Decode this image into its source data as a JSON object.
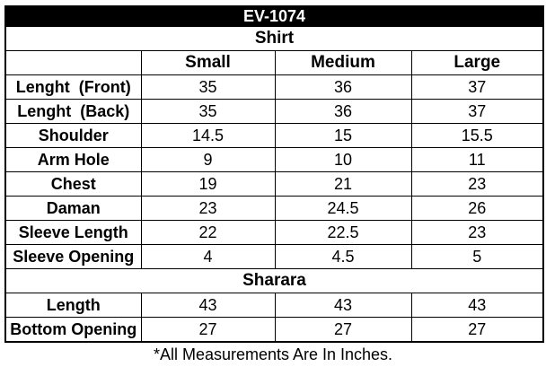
{
  "title": "EV-1074",
  "columns": [
    "Small",
    "Medium",
    "Large"
  ],
  "sections": [
    {
      "name": "Shirt",
      "rows": [
        {
          "label": "Lenght  (Front)",
          "values": [
            "35",
            "36",
            "37"
          ]
        },
        {
          "label": "Lenght  (Back)",
          "values": [
            "35",
            "36",
            "37"
          ]
        },
        {
          "label": "Shoulder",
          "values": [
            "14.5",
            "15",
            "15.5"
          ]
        },
        {
          "label": "Arm Hole",
          "values": [
            "9",
            "10",
            "11"
          ]
        },
        {
          "label": "Chest",
          "values": [
            "19",
            "21",
            "23"
          ]
        },
        {
          "label": "Daman",
          "values": [
            "23",
            "24.5",
            "26"
          ]
        },
        {
          "label": "Sleeve Length",
          "values": [
            "22",
            "22.5",
            "23"
          ]
        },
        {
          "label": "Sleeve Opening",
          "values": [
            "4",
            "4.5",
            "5"
          ]
        }
      ]
    },
    {
      "name": "Sharara",
      "rows": [
        {
          "label": "Length",
          "values": [
            "43",
            "43",
            "43"
          ]
        },
        {
          "label": "Bottom Opening",
          "values": [
            "27",
            "27",
            "27"
          ]
        }
      ]
    }
  ],
  "footnote": "*All Measurements Are In Inches.",
  "colors": {
    "title_bg": "#000000",
    "title_text": "#ffffff",
    "border": "#000000",
    "background": "#ffffff",
    "text": "#000000"
  }
}
